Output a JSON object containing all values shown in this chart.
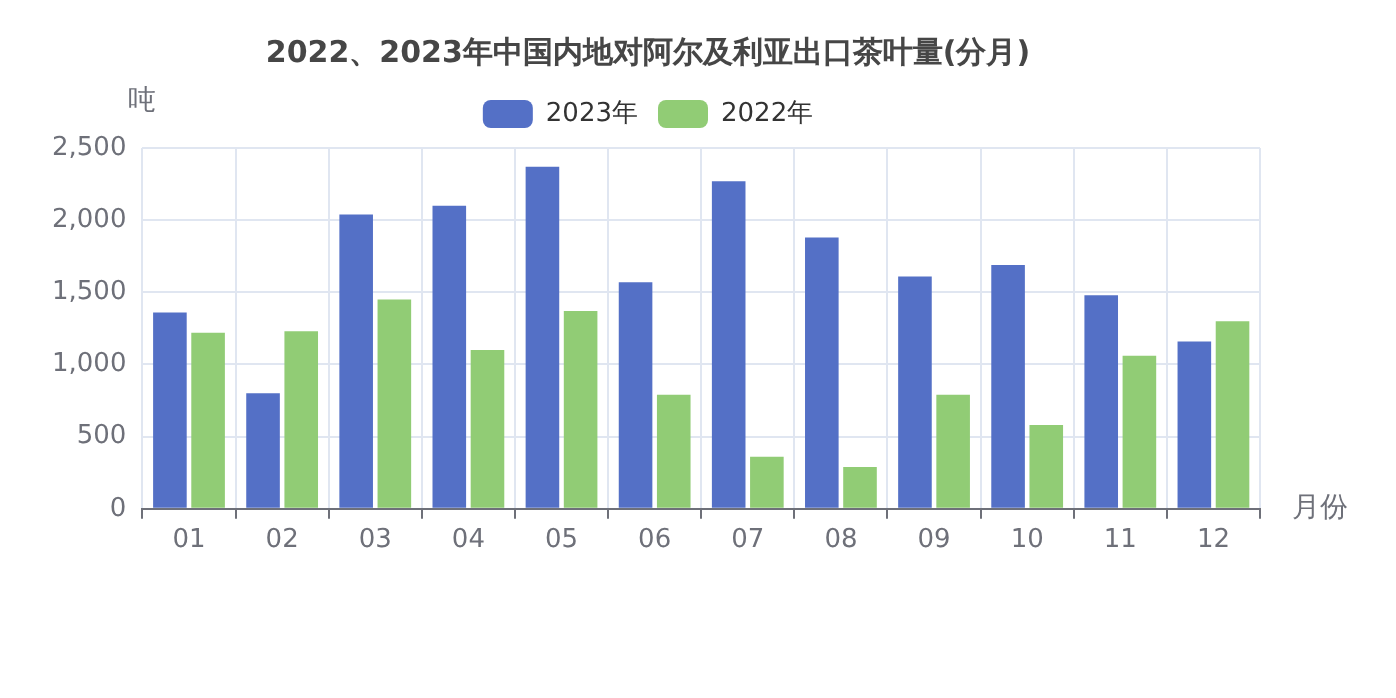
{
  "chart_data": {
    "type": "bar",
    "title": "2022、2023年中国内地对阿尔及利亚出口茶叶量(分月)",
    "xlabel": "月份",
    "ylabel": "吨",
    "categories": [
      "01",
      "02",
      "03",
      "04",
      "05",
      "06",
      "07",
      "08",
      "09",
      "10",
      "11",
      "12"
    ],
    "series": [
      {
        "name": "2023年",
        "color": "#5470c6",
        "values": [
          1360,
          800,
          2040,
          2100,
          2370,
          1570,
          2270,
          1880,
          1610,
          1690,
          1480,
          1160
        ]
      },
      {
        "name": "2022年",
        "color": "#91cc75",
        "values": [
          1220,
          1230,
          1450,
          1100,
          1370,
          790,
          360,
          290,
          790,
          580,
          1060,
          1300
        ]
      }
    ],
    "ylim": [
      0,
      2500
    ],
    "yticks": [
      0,
      500,
      {
        "value": 1000,
        "label": "1,000"
      },
      {
        "value": 1500,
        "label": "1,500"
      },
      {
        "value": 2000,
        "label": "2,000"
      },
      {
        "value": 2500,
        "label": "2,500"
      }
    ],
    "grid": true,
    "legend": "top"
  }
}
